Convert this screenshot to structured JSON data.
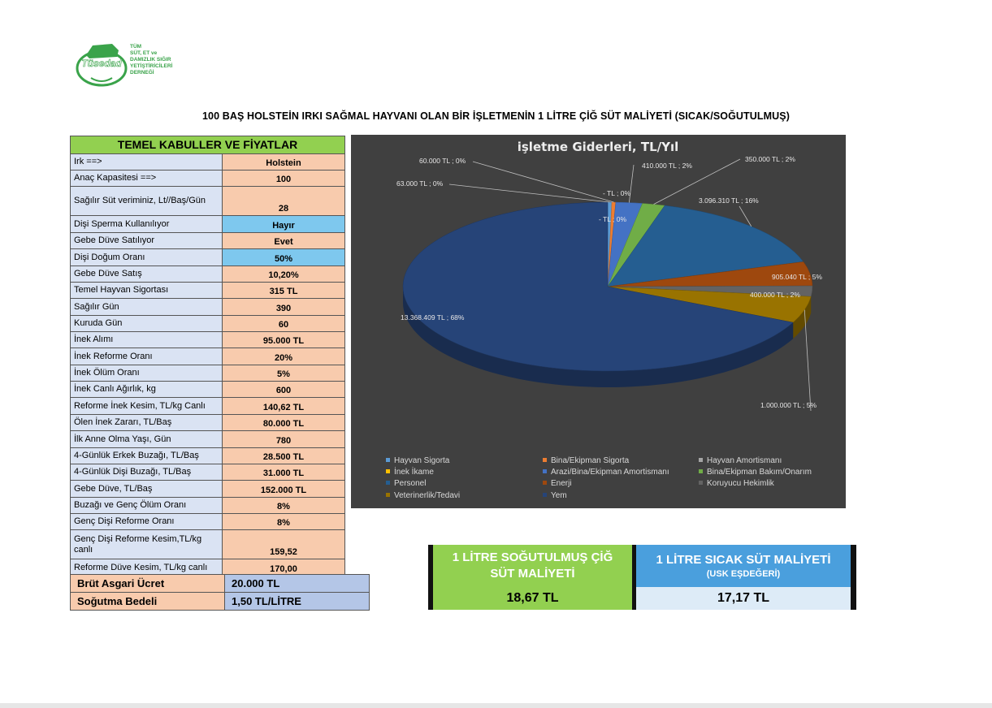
{
  "logo": {
    "wordmark": "Tüsedad",
    "lines": [
      "TÜM",
      "SÜT, ET ve",
      "DAMIZLIK SIĞIR",
      "YETİŞTİRİCİLERİ",
      "DERNEĞİ"
    ]
  },
  "title": "100 BAŞ HOLSTEİN IRKI SAĞMAL HAYVANI OLAN BİR İŞLETMENİN 1 LİTRE  ÇİĞ SÜT MALİYETİ (SICAK/SOĞUTULMUŞ)",
  "assumptions": {
    "header": "TEMEL KABULLER VE FİYATLAR",
    "rows": [
      {
        "label": "Irk ==>",
        "value": "Holstein"
      },
      {
        "label": "Anaç Kapasitesi ==>",
        "value": "100"
      },
      {
        "label": "Sağılır Süt veriminiz, Lt//Baş/Gün",
        "value": "28"
      },
      {
        "label": "Dişi Sperma Kullanılıyor",
        "value": "Hayır"
      },
      {
        "label": "Gebe Düve Satılıyor",
        "value": "Evet"
      },
      {
        "label": "Dişi Doğum Oranı",
        "value": "50%"
      },
      {
        "label": "Gebe Düve Satış",
        "value": "10,20%"
      },
      {
        "label": "Temel Hayvan Sigortası",
        "value": "315 TL"
      },
      {
        "label": "Sağılır Gün",
        "value": "390"
      },
      {
        "label": "Kuruda Gün",
        "value": "60"
      },
      {
        "label": "İnek Alımı",
        "value": "95.000 TL"
      },
      {
        "label": "İnek Reforme Oranı",
        "value": "20%"
      },
      {
        "label": "İnek Ölüm Oranı",
        "value": "5%"
      },
      {
        "label": "İnek Canlı Ağırlık, kg",
        "value": "600"
      },
      {
        "label": "Reforme İnek Kesim, TL/kg Canlı",
        "value": "140,62 TL"
      },
      {
        "label": "Ölen İnek Zararı, TL/Baş",
        "value": "80.000 TL"
      },
      {
        "label": "İlk Anne Olma Yaşı, Gün",
        "value": "780"
      },
      {
        "label": "4-Günlük Erkek Buzağı, TL/Baş",
        "value": "28.500 TL"
      },
      {
        "label": "4-Günlük Dişi Buzağı, TL/Baş",
        "value": "31.000 TL"
      },
      {
        "label": "Gebe Düve, TL/Baş",
        "value": "152.000 TL"
      },
      {
        "label": "Buzağı ve Genç Ölüm Oranı",
        "value": "8%"
      },
      {
        "label": "Genç Dişi Reforme Oranı",
        "value": "8%"
      },
      {
        "label": "Genç Dişi Reforme Kesim,TL/kg canlı",
        "value": "159,52"
      },
      {
        "label": "Reforme Düve Kesim, TL/kg canlı",
        "value": "170,00"
      }
    ]
  },
  "wage_table": {
    "rows": [
      {
        "label": "Brüt Asgari Ücret",
        "value": "20.000 TL"
      },
      {
        "label": "Soğutma Bedeli",
        "value": "1,50 TL/LİTRE"
      }
    ]
  },
  "cost_cards": {
    "cooled": {
      "line1": "1 LİTRE SOĞUTULMUŞ ÇİĞ",
      "line2": "SÜT MALİYETİ",
      "value": "18,67 TL",
      "color": "#92d050"
    },
    "warm": {
      "line1": "1 LİTRE SICAK SÜT MALİYETİ",
      "line2": "(USK EŞDEĞERİ)",
      "value": "17,17 TL",
      "color": "#4a9fdd"
    }
  },
  "colors": {
    "table_label_bg": "#dae3f3",
    "table_value_bg": "#f8cbad",
    "highlight_blue": "#7ec8ee",
    "header_green": "#92d050",
    "chart_bg": "#404040"
  },
  "chart_data": {
    "type": "pie",
    "title": "işletme Giderleri, TL/Yıl",
    "legend_position": "bottom",
    "categories": [
      "Hayvan Sigorta",
      "Bina/Ekipman Sigorta",
      "Hayvan Amortismanı",
      "İnek İkame",
      "Arazi/Bina/Ekipman Amortismanı",
      "Bina/Ekipman Bakım/Onarım",
      "Personel",
      "Enerji",
      "Koruyucu Hekimlik",
      "Veterinerlik/Tedavi",
      "Yem"
    ],
    "values": [
      63000,
      60000,
      0,
      0,
      410000,
      350000,
      3096310,
      905040,
      400000,
      1000000,
      13368409
    ],
    "colors": [
      "#5b9bd5",
      "#ed7d31",
      "#a5a5a5",
      "#ffc000",
      "#4472c4",
      "#70ad47",
      "#255e91",
      "#9e480e",
      "#636363",
      "#997300",
      "#264478"
    ],
    "data_labels": [
      "63.000 TL ; 0%",
      "60.000 TL ; 0%",
      "- TL ; 0%",
      "- TL ; 0%",
      "410.000 TL ; 2%",
      "350.000 TL ; 2%",
      "3.096.310 TL ; 16%",
      "905.040 TL ; 5%",
      "400.000 TL ; 2%",
      "1.000.000 TL ; 5%",
      "13.368.409 TL ; 68%"
    ]
  }
}
